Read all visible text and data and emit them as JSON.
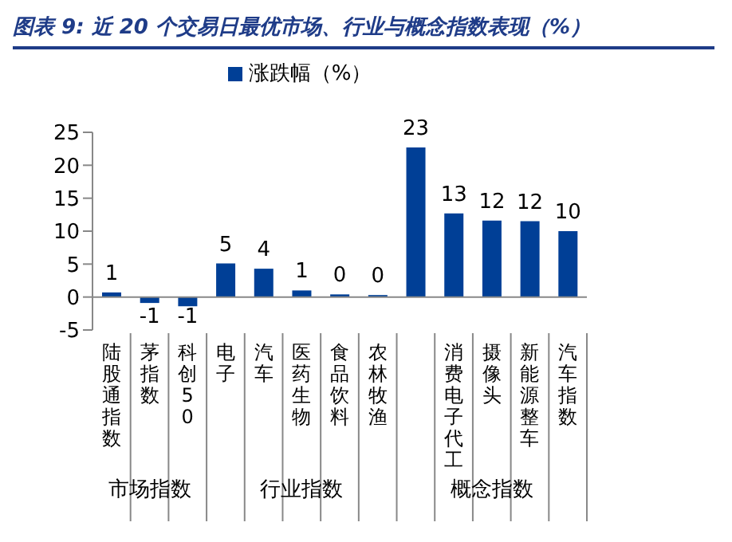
{
  "chart_data": {
    "type": "bar",
    "title": "图表 9:  近 20 个交易日最优市场、行业与概念指数表现（%）",
    "categories": [
      "陆股通指数",
      "茅指数",
      "科创50",
      "电子",
      "汽车",
      "医药生物",
      "食品饮料",
      "农林牧渔",
      null,
      "消费电子代工",
      "摄像头",
      "新能源整车",
      "汽车指数"
    ],
    "series": [
      {
        "name": "涨跌幅（%）",
        "color": "#003f96",
        "values": [
          0.7,
          -0.9,
          -1.4,
          5.1,
          4.3,
          1.0,
          0.4,
          0.3,
          22.7,
          12.7,
          11.6,
          11.5,
          10.0
        ],
        "value_labels": [
          "1",
          "-1",
          "-1",
          "5",
          "4",
          "1",
          "0",
          "0",
          "23",
          "13",
          "12",
          "12",
          "10"
        ]
      }
    ],
    "ylim": [
      -5,
      25
    ],
    "yticks": [
      -5,
      0,
      5,
      10,
      15,
      20,
      25
    ],
    "legend": "top",
    "annotations": [
      "市场指数",
      "行业指数",
      "概念指数"
    ]
  }
}
